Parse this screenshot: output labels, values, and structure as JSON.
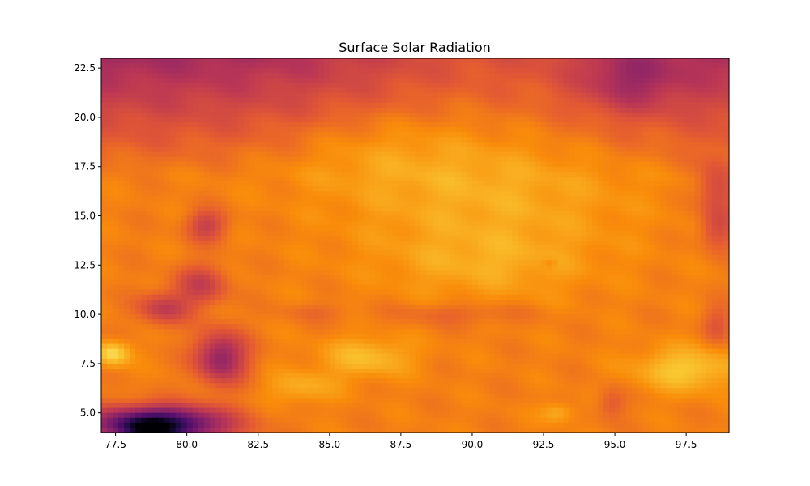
{
  "chart_data": {
    "type": "heatmap",
    "title": "Surface Solar Radiation",
    "xlabel": "",
    "ylabel": "",
    "xlim": [
      77.0,
      99.0
    ],
    "ylim": [
      4.0,
      23.0
    ],
    "xticks": [
      77.5,
      80.0,
      82.5,
      85.0,
      87.5,
      90.0,
      92.5,
      95.0,
      97.5
    ],
    "xtick_labels": [
      "77.5",
      "80.0",
      "82.5",
      "85.0",
      "87.5",
      "90.0",
      "92.5",
      "95.0",
      "97.5"
    ],
    "yticks": [
      5.0,
      7.5,
      10.0,
      12.5,
      15.0,
      17.5,
      20.0,
      22.5
    ],
    "ytick_labels": [
      "5.0",
      "7.5",
      "10.0",
      "12.5",
      "15.0",
      "17.5",
      "20.0",
      "22.5"
    ],
    "colormap": "inferno",
    "colorbar": false,
    "grid": false,
    "value_range": [
      0.0,
      1.0
    ],
    "base_level": 0.72,
    "features": [
      {
        "kind": "gradient_north_dark",
        "lat_start": 17.0,
        "lat_end": 23.0,
        "drop": 0.2
      },
      {
        "lon": 90.5,
        "lat": 16.0,
        "sx": 5.0,
        "sy": 4.0,
        "amp": 0.1
      },
      {
        "lon": 86.5,
        "lat": 18.5,
        "sx": 3.5,
        "sy": 2.0,
        "amp": 0.06
      },
      {
        "lon": 90.5,
        "lat": 12.5,
        "sx": 3.2,
        "sy": 1.6,
        "amp": 0.06
      },
      {
        "lon": 95.5,
        "lat": 21.8,
        "sx": 1.6,
        "sy": 1.5,
        "amp": -0.14
      },
      {
        "lon": 98.6,
        "lat": 16.3,
        "sx": 0.7,
        "sy": 1.6,
        "amp": -0.16
      },
      {
        "lon": 98.6,
        "lat": 14.2,
        "sx": 0.6,
        "sy": 1.0,
        "amp": -0.12
      },
      {
        "lon": 98.6,
        "lat": 9.5,
        "sx": 0.5,
        "sy": 1.0,
        "amp": -0.1
      },
      {
        "lon": 80.7,
        "lat": 14.5,
        "sx": 0.7,
        "sy": 0.8,
        "amp": -0.18
      },
      {
        "lon": 80.5,
        "lat": 11.5,
        "sx": 0.9,
        "sy": 1.0,
        "amp": -0.18
      },
      {
        "lon": 79.2,
        "lat": 10.3,
        "sx": 0.9,
        "sy": 0.8,
        "amp": -0.2
      },
      {
        "lon": 81.2,
        "lat": 7.8,
        "sx": 0.9,
        "sy": 1.3,
        "amp": -0.32
      },
      {
        "lon": 79.0,
        "lat": 4.4,
        "sx": 2.3,
        "sy": 0.9,
        "amp": -0.62
      },
      {
        "lon": 78.7,
        "lat": 4.2,
        "sx": 0.8,
        "sy": 0.5,
        "amp": -0.25
      },
      {
        "lon": 77.4,
        "lat": 8.0,
        "sx": 0.6,
        "sy": 0.6,
        "amp": 0.2
      },
      {
        "lon": 97.5,
        "lat": 7.2,
        "sx": 1.8,
        "sy": 1.1,
        "amp": 0.16
      },
      {
        "lon": 86.3,
        "lat": 7.8,
        "sx": 1.6,
        "sy": 1.0,
        "amp": 0.13
      },
      {
        "lon": 84.0,
        "lat": 6.3,
        "sx": 1.2,
        "sy": 0.8,
        "amp": 0.1
      },
      {
        "lon": 93.0,
        "lat": 5.0,
        "sx": 0.6,
        "sy": 0.5,
        "amp": 0.1
      },
      {
        "lon": 92.7,
        "lat": 12.6,
        "sx": 0.25,
        "sy": 0.25,
        "amp": -0.05
      },
      {
        "lon": 94.9,
        "lat": 5.5,
        "sx": 0.5,
        "sy": 0.8,
        "amp": -0.1
      },
      {
        "lon": 89.5,
        "lat": 10.0,
        "sx": 2.5,
        "sy": 0.6,
        "amp": -0.07
      },
      {
        "lon": 84.5,
        "lat": 10.1,
        "sx": 1.2,
        "sy": 0.5,
        "amp": -0.05
      }
    ]
  }
}
